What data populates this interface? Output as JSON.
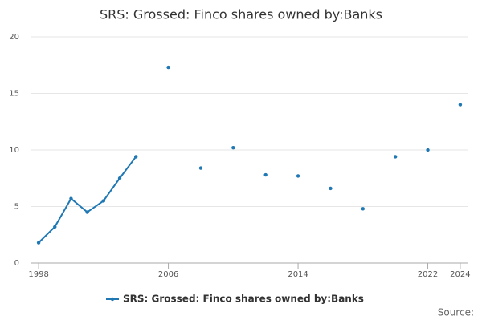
{
  "chart_data": {
    "type": "line",
    "title": "SRS: Grossed: Finco shares owned by:Banks",
    "x": [
      1998,
      1999,
      2000,
      2001,
      2002,
      2003,
      2004,
      2005,
      2006,
      2007,
      2008,
      2009,
      2010,
      2011,
      2012,
      2013,
      2014,
      2015,
      2016,
      2017,
      2018,
      2019,
      2020,
      2021,
      2022,
      2023,
      2024
    ],
    "series": [
      {
        "name": "SRS: Grossed: Finco shares owned by:Banks",
        "color": "#1f78b4",
        "values": [
          1.8,
          3.2,
          5.7,
          4.5,
          5.5,
          7.5,
          9.4,
          null,
          17.3,
          null,
          8.4,
          null,
          10.2,
          null,
          7.8,
          null,
          7.7,
          null,
          6.6,
          null,
          4.8,
          null,
          9.4,
          null,
          10.0,
          null,
          14.0
        ]
      }
    ],
    "xlim": [
      1997.5,
      2024.5
    ],
    "xticks": [
      1998,
      2006,
      2014,
      2022,
      2024
    ],
    "ylim": [
      0,
      20
    ],
    "yticks": [
      0,
      5,
      10,
      15,
      20
    ],
    "grid": true,
    "source": "Source:"
  }
}
